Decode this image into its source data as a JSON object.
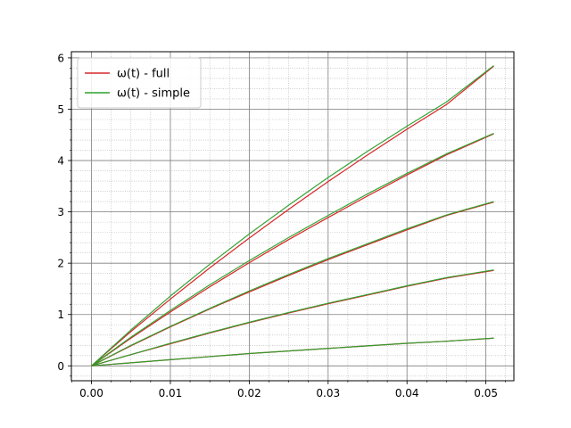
{
  "chart_data": {
    "type": "line",
    "x": [
      0,
      0.005,
      0.01,
      0.015,
      0.02,
      0.025,
      0.03,
      0.035,
      0.04,
      0.045,
      0.051
    ],
    "series": [
      {
        "name": "ω(t) - full",
        "color": "#d62728",
        "show_in_legend": true,
        "values": [
          0,
          0.67,
          1.3,
          1.91,
          2.49,
          3.05,
          3.59,
          4.11,
          4.61,
          5.09,
          5.84
        ]
      },
      {
        "name": "ω(t) - simple",
        "color": "#2ca02c",
        "show_in_legend": true,
        "values": [
          0,
          0.7,
          1.36,
          1.98,
          2.57,
          3.13,
          3.67,
          4.18,
          4.67,
          5.14,
          5.85
        ]
      },
      {
        "color": "#d62728",
        "show_in_legend": false,
        "values": [
          0,
          0.54,
          1.05,
          1.54,
          2.01,
          2.46,
          2.89,
          3.31,
          3.72,
          4.11,
          4.52
        ]
      },
      {
        "color": "#2ca02c",
        "show_in_legend": false,
        "values": [
          0,
          0.56,
          1.08,
          1.58,
          2.05,
          2.5,
          2.93,
          3.35,
          3.75,
          4.13,
          4.53
        ]
      },
      {
        "color": "#d62728",
        "show_in_legend": false,
        "values": [
          0,
          0.39,
          0.76,
          1.11,
          1.44,
          1.76,
          2.07,
          2.36,
          2.65,
          2.93,
          3.19
        ]
      },
      {
        "color": "#2ca02c",
        "show_in_legend": false,
        "values": [
          0,
          0.4,
          0.77,
          1.12,
          1.46,
          1.78,
          2.09,
          2.38,
          2.67,
          2.94,
          3.2
        ]
      },
      {
        "color": "#d62728",
        "show_in_legend": false,
        "values": [
          0,
          0.22,
          0.43,
          0.64,
          0.84,
          1.03,
          1.21,
          1.38,
          1.55,
          1.71,
          1.86
        ]
      },
      {
        "color": "#2ca02c",
        "show_in_legend": false,
        "values": [
          0,
          0.22,
          0.44,
          0.65,
          0.85,
          1.04,
          1.22,
          1.39,
          1.56,
          1.72,
          1.87
        ]
      },
      {
        "color": "#d62728",
        "show_in_legend": false,
        "values": [
          0,
          0.06,
          0.12,
          0.18,
          0.24,
          0.29,
          0.34,
          0.39,
          0.44,
          0.48,
          0.54
        ]
      },
      {
        "color": "#2ca02c",
        "show_in_legend": false,
        "values": [
          0,
          0.06,
          0.12,
          0.18,
          0.24,
          0.29,
          0.34,
          0.39,
          0.44,
          0.48,
          0.54
        ]
      }
    ],
    "xlim": [
      -0.00255,
      0.05355
    ],
    "ylim": [
      -0.29,
      6.12
    ],
    "xticks": [
      0,
      0.01,
      0.02,
      0.03,
      0.04,
      0.05
    ],
    "xtick_labels": [
      "0.00",
      "0.01",
      "0.02",
      "0.03",
      "0.04",
      "0.05"
    ],
    "yticks": [
      0,
      1,
      2,
      3,
      4,
      5,
      6
    ],
    "ytick_labels": [
      "0",
      "1",
      "2",
      "3",
      "4",
      "5",
      "6"
    ],
    "x_minor_step": 0.0025,
    "y_minor_step": 0.2,
    "grid": {
      "major": true,
      "minor": true,
      "major_color": "#808080",
      "minor_color": "#b0b0b0"
    },
    "legend_position": "upper-left",
    "title": "",
    "xlabel": "",
    "ylabel": ""
  }
}
